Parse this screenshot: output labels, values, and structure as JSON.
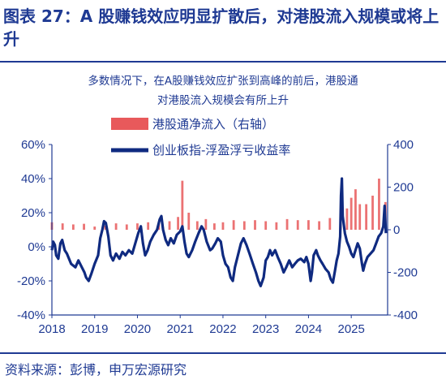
{
  "header": {
    "title": "图表 27：A 股赚钱效应明显扩散后，对港股流入规模或将上升"
  },
  "chart_data": {
    "type": "line",
    "subtitle_lines": [
      "多数情况下，在A股赚钱效应扩张到高峰的前后，港股通",
      "对港股流入规模会有所上升"
    ],
    "x_tick_labels": [
      "2018",
      "2019",
      "2020",
      "2021",
      "2022",
      "2023",
      "2024",
      "2025"
    ],
    "xlim": [
      2018.0,
      2025.85
    ],
    "y_left": {
      "tick_labels": [
        "60%",
        "40%",
        "20%",
        "0%",
        "-20%",
        "-40%"
      ],
      "ylim": [
        -0.4,
        0.6
      ]
    },
    "y_right": {
      "tick_labels": [
        "400",
        "200",
        "0",
        "-200",
        "-400"
      ],
      "ylim": [
        -400,
        400
      ]
    },
    "legend_placement": "top-center",
    "series": [
      {
        "name": "港股通净流入（右轴）",
        "axis": "right",
        "render": "bar",
        "color": "#e8595b",
        "points": [
          [
            2018.0,
            35
          ],
          [
            2018.25,
            30
          ],
          [
            2018.5,
            25
          ],
          [
            2018.75,
            28
          ],
          [
            2019.0,
            15
          ],
          [
            2019.25,
            20
          ],
          [
            2019.5,
            30
          ],
          [
            2019.75,
            25
          ],
          [
            2020.0,
            30
          ],
          [
            2020.25,
            35
          ],
          [
            2020.5,
            30
          ],
          [
            2020.75,
            40
          ],
          [
            2020.95,
            60
          ],
          [
            2021.05,
            230
          ],
          [
            2021.2,
            80
          ],
          [
            2021.4,
            40
          ],
          [
            2021.6,
            50
          ],
          [
            2021.8,
            30
          ],
          [
            2022.0,
            35
          ],
          [
            2022.25,
            45
          ],
          [
            2022.5,
            40
          ],
          [
            2022.75,
            45
          ],
          [
            2023.0,
            40
          ],
          [
            2023.25,
            35
          ],
          [
            2023.5,
            50
          ],
          [
            2023.75,
            45
          ],
          [
            2024.0,
            45
          ],
          [
            2024.25,
            40
          ],
          [
            2024.5,
            55
          ],
          [
            2024.75,
            60
          ],
          [
            2024.9,
            100
          ],
          [
            2025.0,
            150
          ],
          [
            2025.1,
            190
          ],
          [
            2025.2,
            120
          ],
          [
            2025.35,
            120
          ],
          [
            2025.5,
            160
          ],
          [
            2025.65,
            240
          ],
          [
            2025.8,
            130
          ]
        ]
      },
      {
        "name": "创业板指-浮盈浮亏收益率",
        "axis": "left",
        "render": "line",
        "color": "#0f2a80",
        "points": [
          [
            2018.0,
            -0.02
          ],
          [
            2018.03,
            0.03
          ],
          [
            2018.07,
            0.01
          ],
          [
            2018.1,
            -0.05
          ],
          [
            2018.15,
            -0.07
          ],
          [
            2018.2,
            0.02
          ],
          [
            2018.24,
            0.04
          ],
          [
            2018.3,
            -0.02
          ],
          [
            2018.35,
            -0.04
          ],
          [
            2018.45,
            -0.1
          ],
          [
            2018.55,
            -0.12
          ],
          [
            2018.62,
            -0.08
          ],
          [
            2018.7,
            -0.12
          ],
          [
            2018.76,
            -0.15
          ],
          [
            2018.8,
            -0.18
          ],
          [
            2018.86,
            -0.2
          ],
          [
            2018.92,
            -0.16
          ],
          [
            2019.0,
            -0.1
          ],
          [
            2019.08,
            -0.05
          ],
          [
            2019.13,
            0.05
          ],
          [
            2019.18,
            0.1
          ],
          [
            2019.22,
            0.15
          ],
          [
            2019.26,
            0.14
          ],
          [
            2019.32,
            0.06
          ],
          [
            2019.37,
            -0.05
          ],
          [
            2019.43,
            -0.08
          ],
          [
            2019.5,
            -0.04
          ],
          [
            2019.58,
            -0.07
          ],
          [
            2019.65,
            -0.03
          ],
          [
            2019.72,
            -0.05
          ],
          [
            2019.8,
            -0.02
          ],
          [
            2019.88,
            -0.04
          ],
          [
            2019.95,
            0.02
          ],
          [
            2020.02,
            0.08
          ],
          [
            2020.08,
            0.12
          ],
          [
            2020.13,
            0.02
          ],
          [
            2020.18,
            -0.05
          ],
          [
            2020.24,
            -0.02
          ],
          [
            2020.3,
            0.03
          ],
          [
            2020.38,
            0.07
          ],
          [
            2020.46,
            0.1
          ],
          [
            2020.52,
            0.16
          ],
          [
            2020.56,
            0.18
          ],
          [
            2020.6,
            0.1
          ],
          [
            2020.66,
            0.04
          ],
          [
            2020.72,
            0.01
          ],
          [
            2020.78,
            0.05
          ],
          [
            2020.85,
            0.02
          ],
          [
            2020.92,
            0.07
          ],
          [
            2021.0,
            0.09
          ],
          [
            2021.05,
            0.12
          ],
          [
            2021.1,
            0.03
          ],
          [
            2021.15,
            -0.04
          ],
          [
            2021.2,
            -0.06
          ],
          [
            2021.28,
            -0.02
          ],
          [
            2021.35,
            0.03
          ],
          [
            2021.43,
            0.08
          ],
          [
            2021.5,
            0.12
          ],
          [
            2021.55,
            0.1
          ],
          [
            2021.62,
            0.03
          ],
          [
            2021.7,
            -0.02
          ],
          [
            2021.75,
            -0.01
          ],
          [
            2021.82,
            0.02
          ],
          [
            2021.88,
            0.05
          ],
          [
            2021.95,
            0.03
          ],
          [
            2022.0,
            -0.05
          ],
          [
            2022.06,
            -0.1
          ],
          [
            2022.12,
            -0.12
          ],
          [
            2022.18,
            -0.18
          ],
          [
            2022.23,
            -0.2
          ],
          [
            2022.28,
            -0.12
          ],
          [
            2022.35,
            -0.05
          ],
          [
            2022.42,
            0.02
          ],
          [
            2022.48,
            0.05
          ],
          [
            2022.55,
            0.01
          ],
          [
            2022.62,
            -0.04
          ],
          [
            2022.7,
            -0.1
          ],
          [
            2022.77,
            -0.15
          ],
          [
            2022.83,
            -0.2
          ],
          [
            2022.88,
            -0.23
          ],
          [
            2022.95,
            -0.18
          ],
          [
            2023.0,
            -0.08
          ],
          [
            2023.05,
            -0.06
          ],
          [
            2023.1,
            -0.02
          ],
          [
            2023.15,
            -0.05
          ],
          [
            2023.22,
            -0.02
          ],
          [
            2023.28,
            -0.06
          ],
          [
            2023.35,
            -0.1
          ],
          [
            2023.42,
            -0.15
          ],
          [
            2023.48,
            -0.12
          ],
          [
            2023.55,
            -0.08
          ],
          [
            2023.62,
            -0.12
          ],
          [
            2023.68,
            -0.1
          ],
          [
            2023.75,
            -0.08
          ],
          [
            2023.82,
            -0.07
          ],
          [
            2023.9,
            -0.09
          ],
          [
            2023.95,
            -0.06
          ],
          [
            2024.0,
            -0.1
          ],
          [
            2024.05,
            -0.2
          ],
          [
            2024.08,
            -0.15
          ],
          [
            2024.12,
            -0.05
          ],
          [
            2024.18,
            -0.02
          ],
          [
            2024.22,
            -0.05
          ],
          [
            2024.28,
            -0.08
          ],
          [
            2024.33,
            -0.1
          ],
          [
            2024.4,
            -0.13
          ],
          [
            2024.47,
            -0.15
          ],
          [
            2024.52,
            -0.19
          ],
          [
            2024.57,
            -0.21
          ],
          [
            2024.62,
            -0.14
          ],
          [
            2024.66,
            -0.08
          ],
          [
            2024.7,
            -0.04
          ],
          [
            2024.74,
            0.06
          ],
          [
            2024.76,
            0.3
          ],
          [
            2024.78,
            0.4
          ],
          [
            2024.8,
            0.18
          ],
          [
            2024.85,
            0.08
          ],
          [
            2024.9,
            0.03
          ],
          [
            2024.95,
            0.0
          ],
          [
            2025.0,
            -0.04
          ],
          [
            2025.05,
            -0.06
          ],
          [
            2025.1,
            -0.02
          ],
          [
            2025.15,
            0.02
          ],
          [
            2025.2,
            -0.01
          ],
          [
            2025.25,
            -0.1
          ],
          [
            2025.28,
            -0.14
          ],
          [
            2025.32,
            -0.1
          ],
          [
            2025.38,
            -0.06
          ],
          [
            2025.45,
            -0.04
          ],
          [
            2025.52,
            -0.02
          ],
          [
            2025.58,
            0.02
          ],
          [
            2025.64,
            0.06
          ],
          [
            2025.7,
            0.08
          ],
          [
            2025.75,
            0.12
          ],
          [
            2025.78,
            0.24
          ],
          [
            2025.81,
            0.08
          ]
        ]
      }
    ]
  },
  "footer": {
    "source": "资料来源：彭博，申万宏源研究"
  }
}
